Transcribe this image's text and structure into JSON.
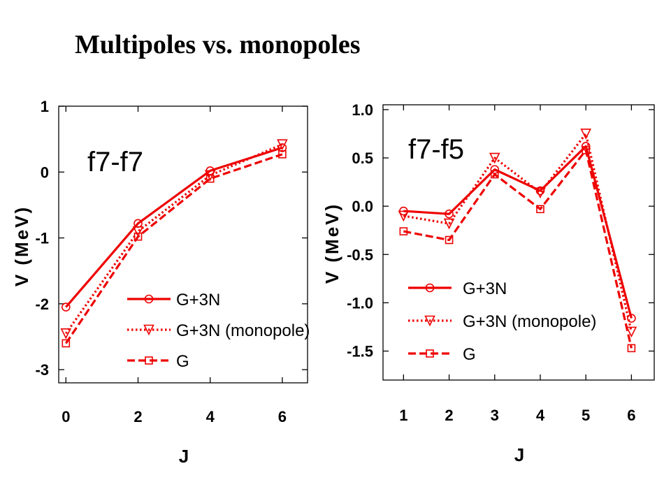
{
  "slide": {
    "title": "Multipoles vs. monopoles"
  },
  "colors": {
    "series": "#ee0000",
    "axis": "#000000"
  },
  "chart_data": [
    {
      "type": "line",
      "panel_label": "f7-f7",
      "xlabel": "J",
      "ylabel": "V (MeV)",
      "xlim": [
        -0.2,
        6.7
      ],
      "ylim": [
        -3.2,
        1.0
      ],
      "x_ticks": [
        0,
        2,
        4,
        6
      ],
      "y_ticks": [
        1,
        0,
        -1,
        -2,
        -3
      ],
      "y_tick_labels": [
        "1",
        "0",
        "-1",
        "-2",
        "-3"
      ],
      "grid": false,
      "legend_position": "bottom-right",
      "series": [
        {
          "name": "G+3N",
          "marker": "circle",
          "line": "solid",
          "x": [
            0,
            2,
            4,
            6
          ],
          "y": [
            -2.05,
            -0.78,
            0.02,
            0.37
          ]
        },
        {
          "name": "G+3N (monopole)",
          "marker": "triangle-down",
          "line": "dotted",
          "x": [
            0,
            2,
            4,
            6
          ],
          "y": [
            -2.45,
            -0.9,
            -0.05,
            0.42
          ]
        },
        {
          "name": "G",
          "marker": "square",
          "line": "dashed",
          "x": [
            0,
            2,
            4,
            6
          ],
          "y": [
            -2.6,
            -0.98,
            -0.1,
            0.27
          ]
        }
      ]
    },
    {
      "type": "line",
      "panel_label": "f7-f5",
      "xlabel": "J",
      "ylabel": "V (MeV)",
      "xlim": [
        0.55,
        6.5
      ],
      "ylim": [
        -1.8,
        1.05
      ],
      "x_ticks": [
        1,
        2,
        3,
        4,
        5,
        6
      ],
      "y_ticks": [
        1.0,
        0.5,
        0.0,
        -0.5,
        -1.0,
        -1.5
      ],
      "y_tick_labels": [
        "1.0",
        "0.5",
        "0.0",
        "-0.5",
        "-1.0",
        "-1.5"
      ],
      "grid": false,
      "legend_position": "bottom-left",
      "series": [
        {
          "name": "G+3N",
          "marker": "circle",
          "line": "solid",
          "x": [
            1,
            2,
            3,
            4,
            5,
            6
          ],
          "y": [
            -0.05,
            -0.08,
            0.38,
            0.16,
            0.62,
            -1.16
          ]
        },
        {
          "name": "G+3N (monopole)",
          "marker": "triangle-down",
          "line": "dotted",
          "x": [
            1,
            2,
            3,
            4,
            5,
            6
          ],
          "y": [
            -0.1,
            -0.18,
            0.5,
            0.14,
            0.75,
            -1.3
          ]
        },
        {
          "name": "G",
          "marker": "square",
          "line": "dashed",
          "x": [
            1,
            2,
            3,
            4,
            5,
            6
          ],
          "y": [
            -0.26,
            -0.35,
            0.33,
            -0.03,
            0.58,
            -1.47
          ]
        }
      ]
    }
  ]
}
